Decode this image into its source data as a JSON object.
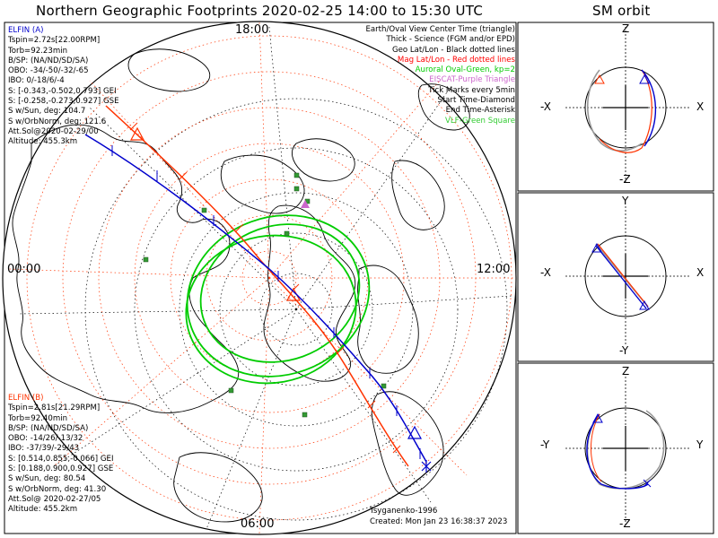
{
  "title": "Northern Geographic Footprints 2020-02-25 14:00 to 15:30 UTC",
  "sm_title": "SM orbit",
  "map": {
    "hour_labels": {
      "top": "18:00",
      "left": "00:00",
      "right": "12:00",
      "bottom": "06:00"
    },
    "colors": {
      "elfin_a": "#0000cc",
      "elfin_b": "#ff3300",
      "oval": "#00cc00",
      "grid": "#ff3300",
      "eiscat": "#cc66cc",
      "vlf": "#339933"
    }
  },
  "legend": [
    {
      "text": "Earth/Oval View Center Time (triangle)",
      "color": "#000000"
    },
    {
      "text": "Thick - Science (FGM and/or EPD)",
      "color": "#000000"
    },
    {
      "text": "Geo Lat/Lon - Black dotted lines",
      "color": "#000000"
    },
    {
      "text": "Mag Lat/Lon - Red dotted lines",
      "color": "#ff0000"
    },
    {
      "text": "Auroral Oval-Green, kp=2",
      "color": "#00cc00"
    },
    {
      "text": "EISCAT-Purple Triangle",
      "color": "#cc66cc"
    },
    {
      "text": "Tick Marks every 5min",
      "color": "#000000"
    },
    {
      "text": "Start Time-Diamond",
      "color": "#000000"
    },
    {
      "text": "End Time-Asterisk",
      "color": "#000000"
    },
    {
      "text": "VLF-Green Square",
      "color": "#33cc33"
    }
  ],
  "elfin_a": {
    "name": "ELFIN (A)",
    "lines": [
      "Tspin=2.72s[22.00RPM]",
      "Torb=92.23min",
      "B/SP: (NA/ND/SD/SA)",
      "OBO: -34/-50/-32/-65",
      "IBO: 0/-18/6/-4",
      "S: [-0.343,-0.502,0.793] GEI",
      "S: [-0.258,-0.273,0.927] GSE",
      "S w/Sun, deg: 104.7",
      "S w/OrbNorm, deg: 121.6",
      "Att.Sol@2020-02-29/00",
      "Altitude: 455.3km"
    ]
  },
  "elfin_b": {
    "name": "ELFIN (B)",
    "lines": [
      "Tspin=2.81s[21.29RPM]",
      "Torb=92.40min",
      "B/SP: (NA/ND/SD/SA)",
      "OBO: -14/26/-13/32",
      "IBO: -37/39/-29/43",
      "S: [0.514,0.855,-0.066] GEI",
      "S: [0.188,0.900,0.927] GSE",
      "S w/Sun, deg: 80.54",
      "S w/OrbNorm, deg: 41.30",
      "Att.Sol@ 2020-02-27/05",
      "Altitude: 455.2km"
    ]
  },
  "footer": {
    "model": "Tsyganenko-1996",
    "created": "Created: Mon Jan 23 16:38:37 2023"
  },
  "sm_panels": [
    {
      "top": "Z",
      "bottom": "-Z",
      "left": "-X",
      "right": "X"
    },
    {
      "top": "Y",
      "bottom": "-Y",
      "left": "-X",
      "right": "X"
    },
    {
      "top": "Z",
      "bottom": "-Z",
      "left": "-Y",
      "right": "Y"
    }
  ]
}
